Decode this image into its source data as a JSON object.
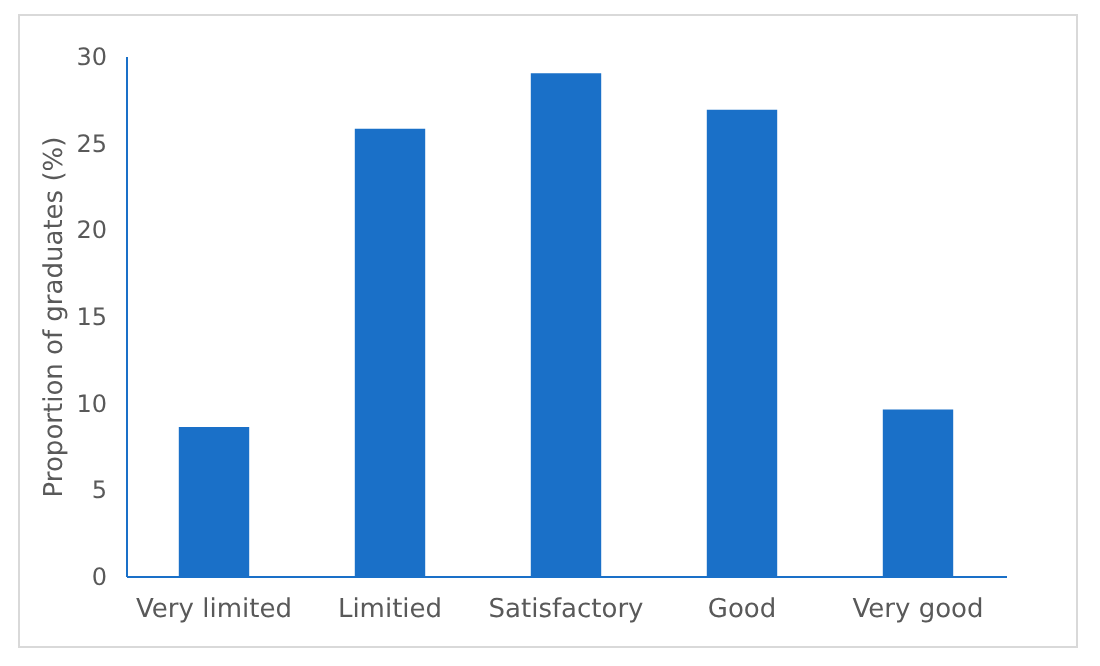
{
  "chart_data": {
    "type": "bar",
    "ylabel": "Proportion of graduates (%)",
    "categories": [
      "Very limited",
      "Limitied",
      "Satisfactory",
      "Good",
      "Very good"
    ],
    "values": [
      8.6,
      25.8,
      29.0,
      26.9,
      9.6
    ],
    "color": "#1a70c8",
    "ylim": [
      0,
      30
    ],
    "yticks": [
      0,
      5,
      10,
      15,
      20,
      25,
      30
    ],
    "grid": false
  }
}
